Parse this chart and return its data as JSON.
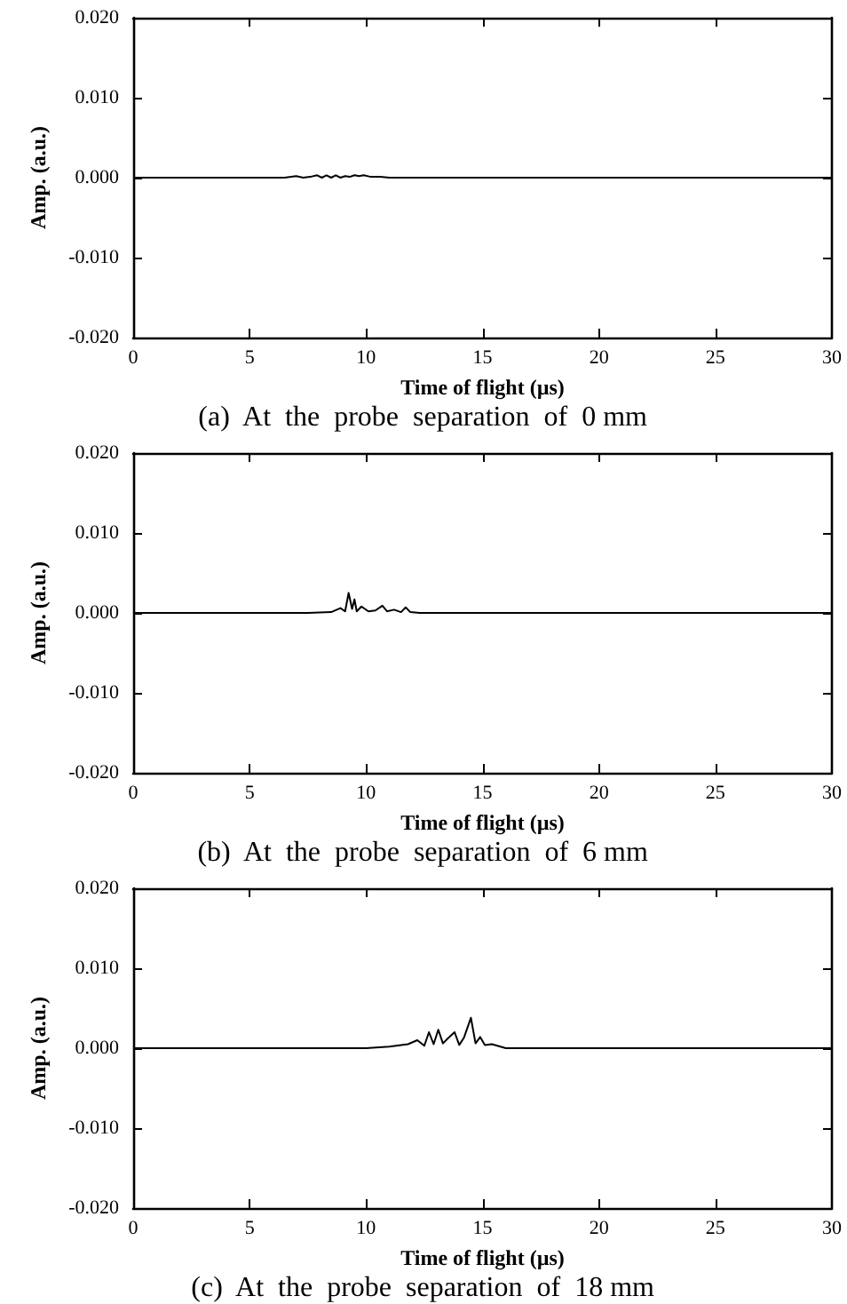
{
  "chart_data": [
    {
      "type": "line",
      "xlabel": "Time of flight (µs)",
      "ylabel": "Amp. (a.u.)",
      "annotations": [
        "(a)  At  the  probe  separation  of  0 mm"
      ],
      "x": [
        0,
        6.5,
        7,
        7.3,
        7.6,
        7.9,
        8.1,
        8.3,
        8.5,
        8.7,
        8.9,
        9.1,
        9.3,
        9.5,
        9.7,
        9.9,
        10.2,
        10.6,
        11,
        30
      ],
      "series": [
        {
          "color": "#000000",
          "values": [
            0,
            0,
            0.0002,
            0,
            0.0001,
            0.0003,
            0,
            0.0003,
            0,
            0.0003,
            0,
            0.0002,
            0.0001,
            0.0003,
            0.0002,
            0.0003,
            0.0001,
            0.0001,
            0,
            0
          ]
        }
      ],
      "xlim": [
        0,
        30
      ],
      "xticks": [
        0,
        5,
        10,
        15,
        20,
        25,
        30
      ],
      "ylim": [
        -0.02,
        0.02
      ],
      "yticks": [
        {
          "value": -0.02,
          "label": "-0.020"
        },
        {
          "value": -0.01,
          "label": "-0.010"
        },
        {
          "value": 0,
          "label": "0.000"
        },
        {
          "value": 0.01,
          "label": "0.010"
        },
        {
          "value": 0.02,
          "label": "0.020"
        }
      ],
      "grid": false
    },
    {
      "type": "line",
      "xlabel": "Time of flight (µs)",
      "ylabel": "Amp. (a.u.)",
      "annotations": [
        "(b)  At  the  probe  separation  of  6 mm"
      ],
      "x": [
        0,
        7.5,
        8.5,
        8.9,
        9.1,
        9.25,
        9.4,
        9.5,
        9.6,
        9.8,
        10.1,
        10.4,
        10.7,
        10.9,
        11.2,
        11.5,
        11.7,
        11.9,
        12.3,
        30
      ],
      "series": [
        {
          "color": "#000000",
          "values": [
            0,
            0,
            0.0001,
            0.0006,
            0.0002,
            0.0025,
            0.0005,
            0.0017,
            0.0002,
            0.0008,
            0.0002,
            0.0003,
            0.0009,
            0.0002,
            0.0004,
            0.0001,
            0.0007,
            0.0001,
            0,
            0
          ]
        }
      ],
      "xlim": [
        0,
        30
      ],
      "xticks": [
        0,
        5,
        10,
        15,
        20,
        25,
        30
      ],
      "ylim": [
        -0.02,
        0.02
      ],
      "yticks": [
        {
          "value": -0.02,
          "label": "-0.020"
        },
        {
          "value": -0.01,
          "label": "-0.010"
        },
        {
          "value": 0,
          "label": "0.000"
        },
        {
          "value": 0.01,
          "label": "0.010"
        },
        {
          "value": 0.02,
          "label": "0.020"
        }
      ],
      "grid": false
    },
    {
      "type": "line",
      "xlabel": "Time of flight (µs)",
      "ylabel": "Amp. (a.u.)",
      "annotations": [
        "(c)  At  the  probe  separation  of  18 mm"
      ],
      "x": [
        0,
        10,
        11,
        11.8,
        12.2,
        12.5,
        12.7,
        12.9,
        13.1,
        13.3,
        13.5,
        13.8,
        14,
        14.2,
        14.5,
        14.7,
        14.9,
        15.1,
        15.4,
        16,
        30
      ],
      "series": [
        {
          "color": "#000000",
          "values": [
            0,
            0,
            0.0002,
            0.0005,
            0.001,
            0.0003,
            0.002,
            0.0005,
            0.0023,
            0.0006,
            0.0012,
            0.002,
            0.0004,
            0.0013,
            0.0038,
            0.0006,
            0.0014,
            0.0004,
            0.0005,
            0,
            0
          ]
        }
      ],
      "xlim": [
        0,
        30
      ],
      "xticks": [
        0,
        5,
        10,
        15,
        20,
        25,
        30
      ],
      "ylim": [
        -0.02,
        0.02
      ],
      "yticks": [
        {
          "value": -0.02,
          "label": "-0.020"
        },
        {
          "value": -0.01,
          "label": "-0.010"
        },
        {
          "value": 0,
          "label": "0.000"
        },
        {
          "value": 0.01,
          "label": "0.010"
        },
        {
          "value": 0.02,
          "label": "0.020"
        }
      ],
      "grid": false
    }
  ]
}
